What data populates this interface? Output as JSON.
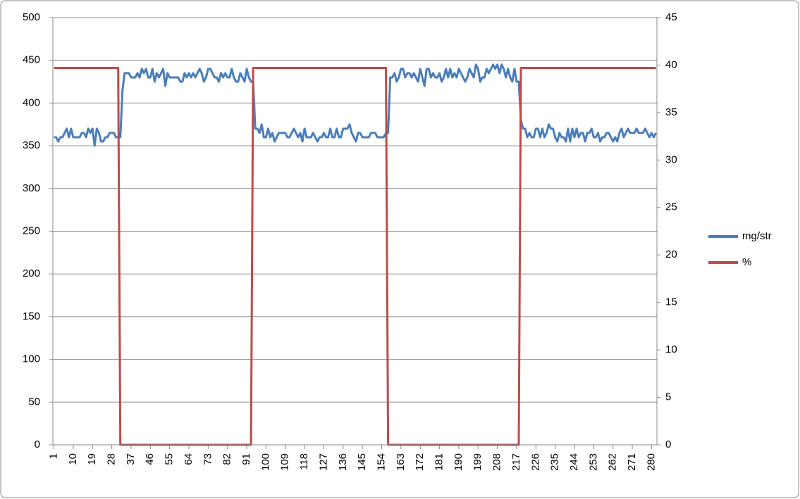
{
  "chart_data": {
    "type": "line",
    "x": [
      1,
      2,
      3,
      4,
      5,
      6,
      7,
      8,
      9,
      10,
      11,
      12,
      13,
      14,
      15,
      16,
      17,
      18,
      19,
      20,
      21,
      22,
      23,
      24,
      25,
      26,
      27,
      28,
      29,
      30,
      31,
      32,
      33,
      34,
      35,
      36,
      37,
      38,
      39,
      40,
      41,
      42,
      43,
      44,
      45,
      46,
      47,
      48,
      49,
      50,
      51,
      52,
      53,
      54,
      55,
      56,
      57,
      58,
      59,
      60,
      61,
      62,
      63,
      64,
      65,
      66,
      67,
      68,
      69,
      70,
      71,
      72,
      73,
      74,
      75,
      76,
      77,
      78,
      79,
      80,
      81,
      82,
      83,
      84,
      85,
      86,
      87,
      88,
      89,
      90,
      91,
      92,
      93,
      94,
      95,
      96,
      97,
      98,
      99,
      100,
      101,
      102,
      103,
      104,
      105,
      106,
      107,
      108,
      109,
      110,
      111,
      112,
      113,
      114,
      115,
      116,
      117,
      118,
      119,
      120,
      121,
      122,
      123,
      124,
      125,
      126,
      127,
      128,
      129,
      130,
      131,
      132,
      133,
      134,
      135,
      136,
      137,
      138,
      139,
      140,
      141,
      142,
      143,
      144,
      145,
      146,
      147,
      148,
      149,
      150,
      151,
      152,
      153,
      154,
      155,
      156,
      157,
      158,
      159,
      160,
      161,
      162,
      163,
      164,
      165,
      166,
      167,
      168,
      169,
      170,
      171,
      172,
      173,
      174,
      175,
      176,
      177,
      178,
      179,
      180,
      181,
      182,
      183,
      184,
      185,
      186,
      187,
      188,
      189,
      190,
      191,
      192,
      193,
      194,
      195,
      196,
      197,
      198,
      199,
      200,
      201,
      202,
      203,
      204,
      205,
      206,
      207,
      208,
      209,
      210,
      211,
      212,
      213,
      214,
      215,
      216,
      217,
      218,
      219,
      220,
      221,
      222,
      223,
      224,
      225,
      226,
      227,
      228,
      229,
      230,
      231,
      232,
      233,
      234,
      235,
      236,
      237,
      238,
      239,
      240,
      241,
      242,
      243,
      244,
      245,
      246,
      247,
      248,
      249,
      250,
      251,
      252,
      253,
      254,
      255,
      256,
      257,
      258,
      259,
      260,
      261,
      262,
      263,
      264,
      265,
      266,
      267,
      268,
      269,
      270,
      271,
      272,
      273,
      274,
      275,
      276,
      277,
      278,
      279,
      280,
      281,
      282
    ],
    "xlim": [
      0.5,
      282.5
    ],
    "xticks": [
      1,
      10,
      19,
      28,
      37,
      46,
      55,
      64,
      73,
      82,
      91,
      100,
      109,
      118,
      127,
      136,
      145,
      154,
      163,
      172,
      181,
      190,
      199,
      208,
      217,
      226,
      235,
      244,
      253,
      262,
      271,
      280
    ],
    "ylim": [
      0,
      500
    ],
    "yticks": [
      0,
      50,
      100,
      150,
      200,
      250,
      300,
      350,
      400,
      450,
      500
    ],
    "y2lim": [
      0,
      45
    ],
    "y2ticks": [
      0,
      5,
      10,
      15,
      20,
      25,
      30,
      35,
      40,
      45
    ],
    "grid": true,
    "legend": "right",
    "series": [
      {
        "name": "mg/str",
        "color": "#4a7ebb",
        "values": [
          360,
          360,
          355,
          360,
          360,
          365,
          370,
          360,
          370,
          360,
          360,
          360,
          360,
          365,
          365,
          360,
          370,
          365,
          370,
          350,
          370,
          365,
          355,
          355,
          360,
          360,
          365,
          365,
          365,
          360,
          360,
          360,
          415,
          435,
          435,
          435,
          430,
          430,
          430,
          435,
          430,
          440,
          435,
          440,
          430,
          430,
          440,
          425,
          435,
          430,
          435,
          440,
          420,
          435,
          430,
          430,
          430,
          430,
          430,
          425,
          425,
          435,
          430,
          435,
          430,
          435,
          430,
          435,
          440,
          435,
          425,
          430,
          440,
          440,
          435,
          430,
          430,
          425,
          435,
          430,
          435,
          430,
          430,
          440,
          430,
          425,
          425,
          435,
          430,
          425,
          440,
          430,
          425,
          425,
          370,
          370,
          365,
          375,
          360,
          360,
          370,
          360,
          365,
          355,
          360,
          365,
          365,
          365,
          365,
          360,
          360,
          365,
          370,
          365,
          360,
          365,
          355,
          370,
          360,
          360,
          360,
          365,
          360,
          355,
          360,
          360,
          365,
          360,
          360,
          370,
          360,
          360,
          370,
          360,
          360,
          370,
          370,
          370,
          375,
          365,
          360,
          355,
          365,
          365,
          360,
          360,
          360,
          360,
          365,
          365,
          365,
          360,
          360,
          360,
          360,
          365,
          365,
          430,
          430,
          435,
          425,
          430,
          440,
          440,
          430,
          435,
          435,
          430,
          435,
          430,
          425,
          440,
          430,
          420,
          440,
          440,
          430,
          435,
          430,
          430,
          435,
          425,
          430,
          440,
          430,
          440,
          430,
          435,
          430,
          440,
          435,
          430,
          425,
          430,
          440,
          435,
          430,
          445,
          440,
          425,
          430,
          430,
          440,
          435,
          440,
          445,
          440,
          445,
          435,
          445,
          440,
          430,
          440,
          430,
          425,
          440,
          425,
          425,
          380,
          370,
          370,
          360,
          365,
          360,
          360,
          370,
          370,
          360,
          370,
          360,
          365,
          375,
          370,
          370,
          360,
          355,
          365,
          360,
          360,
          355,
          370,
          355,
          370,
          360,
          370,
          360,
          365,
          365,
          355,
          365,
          365,
          370,
          360,
          360,
          365,
          355,
          360,
          360,
          365,
          365,
          360,
          355,
          360,
          355,
          365,
          370,
          360,
          365,
          370,
          365,
          365,
          365,
          370,
          365,
          365,
          365,
          370,
          365,
          360,
          365,
          360,
          365
        ]
      },
      {
        "name": "%",
        "color": "#be4b48",
        "axis": "y2",
        "values": [
          39.7,
          39.7,
          39.7,
          39.7,
          39.7,
          39.7,
          39.7,
          39.7,
          39.7,
          39.7,
          39.7,
          39.7,
          39.7,
          39.7,
          39.7,
          39.7,
          39.7,
          39.7,
          39.7,
          39.7,
          39.7,
          39.7,
          39.7,
          39.7,
          39.7,
          39.7,
          39.7,
          39.7,
          39.7,
          39.7,
          39.7,
          0,
          0,
          0,
          0,
          0,
          0,
          0,
          0,
          0,
          0,
          0,
          0,
          0,
          0,
          0,
          0,
          0,
          0,
          0,
          0,
          0,
          0,
          0,
          0,
          0,
          0,
          0,
          0,
          0,
          0,
          0,
          0,
          0,
          0,
          0,
          0,
          0,
          0,
          0,
          0,
          0,
          0,
          0,
          0,
          0,
          0,
          0,
          0,
          0,
          0,
          0,
          0,
          0,
          0,
          0,
          0,
          0,
          0,
          0,
          0,
          0,
          0,
          39.7,
          39.7,
          39.7,
          39.7,
          39.7,
          39.7,
          39.7,
          39.7,
          39.7,
          39.7,
          39.7,
          39.7,
          39.7,
          39.7,
          39.7,
          39.7,
          39.7,
          39.7,
          39.7,
          39.7,
          39.7,
          39.7,
          39.7,
          39.7,
          39.7,
          39.7,
          39.7,
          39.7,
          39.7,
          39.7,
          39.7,
          39.7,
          39.7,
          39.7,
          39.7,
          39.7,
          39.7,
          39.7,
          39.7,
          39.7,
          39.7,
          39.7,
          39.7,
          39.7,
          39.7,
          39.7,
          39.7,
          39.7,
          39.7,
          39.7,
          39.7,
          39.7,
          39.7,
          39.7,
          39.7,
          39.7,
          39.7,
          39.7,
          39.7,
          39.7,
          39.7,
          39.7,
          39.7,
          0,
          0,
          0,
          0,
          0,
          0,
          0,
          0,
          0,
          0,
          0,
          0,
          0,
          0,
          0,
          0,
          0,
          0,
          0,
          0,
          0,
          0,
          0,
          0,
          0,
          0,
          0,
          0,
          0,
          0,
          0,
          0,
          0,
          0,
          0,
          0,
          0,
          0,
          0,
          0,
          0,
          0,
          0,
          0,
          0,
          0,
          0,
          0,
          0,
          0,
          0,
          0,
          0,
          0,
          0,
          0,
          0,
          0,
          0,
          0,
          0,
          0,
          39.7,
          39.7,
          39.7,
          39.7,
          39.7,
          39.7,
          39.7,
          39.7,
          39.7,
          39.7,
          39.7,
          39.7,
          39.7,
          39.7,
          39.7,
          39.7,
          39.7,
          39.7,
          39.7,
          39.7,
          39.7,
          39.7,
          39.7,
          39.7,
          39.7,
          39.7,
          39.7,
          39.7,
          39.7,
          39.7,
          39.7,
          39.7,
          39.7,
          39.7,
          39.7,
          39.7,
          39.7,
          39.7,
          39.7,
          39.7,
          39.7,
          39.7,
          39.7,
          39.7,
          39.7,
          39.7,
          39.7,
          39.7,
          39.7,
          39.7,
          39.7,
          39.7,
          39.7,
          39.7,
          39.7,
          39.7,
          39.7,
          39.7,
          39.7,
          39.7,
          39.7,
          39.7,
          39.7,
          39.7
        ]
      }
    ]
  }
}
